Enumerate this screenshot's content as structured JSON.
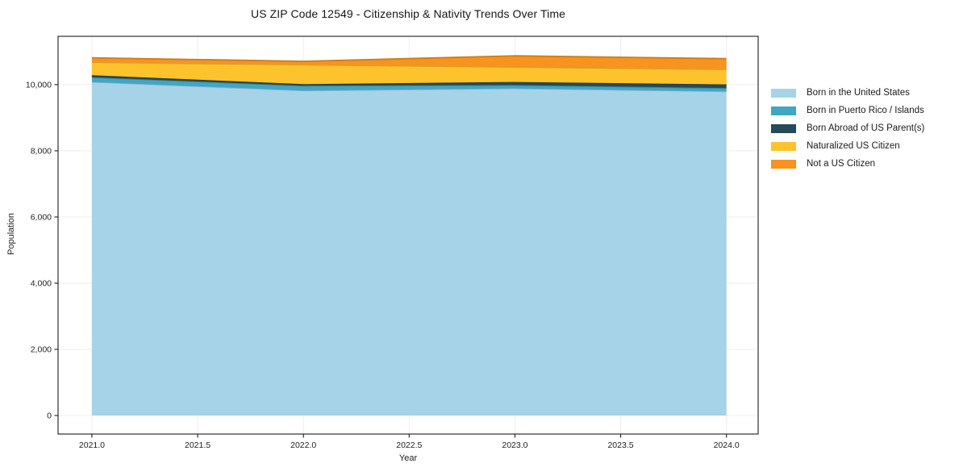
{
  "chart_data": {
    "type": "area",
    "stacked": true,
    "title": "US ZIP Code 12549 - Citizenship & Nativity Trends Over Time",
    "xlabel": "Year",
    "ylabel": "Population",
    "x": [
      2021,
      2022,
      2023,
      2024
    ],
    "series": [
      {
        "name": "Born in the United States",
        "color": "#a6d3e8",
        "values": [
          10080,
          9820,
          9885,
          9795
        ]
      },
      {
        "name": "Born in Puerto Rico / Islands",
        "color": "#41a6c4",
        "values": [
          140,
          145,
          100,
          100
        ]
      },
      {
        "name": "Born Abroad of US Parent(s)",
        "color": "#26495c",
        "values": [
          65,
          50,
          95,
          110
        ]
      },
      {
        "name": "Naturalized US Citizen",
        "color": "#fcc32d",
        "values": [
          390,
          585,
          450,
          455
        ]
      },
      {
        "name": "Not a US Citizen",
        "color": "#f6941e",
        "values": [
          135,
          105,
          340,
          325
        ]
      }
    ],
    "xticks": [
      2021.0,
      2021.5,
      2022.0,
      2022.5,
      2023.0,
      2023.5,
      2024.0
    ],
    "xtick_labels": [
      "2021.0",
      "2021.5",
      "2022.0",
      "2022.5",
      "2023.0",
      "2023.5",
      "2024.0"
    ],
    "yticks": [
      0,
      2000,
      4000,
      6000,
      8000,
      10000
    ],
    "ytick_labels": [
      "0",
      "2,000",
      "4,000",
      "6,000",
      "8,000",
      "10,000"
    ],
    "xlim": [
      2020.84,
      2024.15
    ],
    "ylim": [
      -560,
      11460
    ],
    "grid": true,
    "grid_color": "#ededed",
    "frame_color": "#1c1c1c",
    "tick_color": "#1c1c1c",
    "legend_position": "right"
  }
}
